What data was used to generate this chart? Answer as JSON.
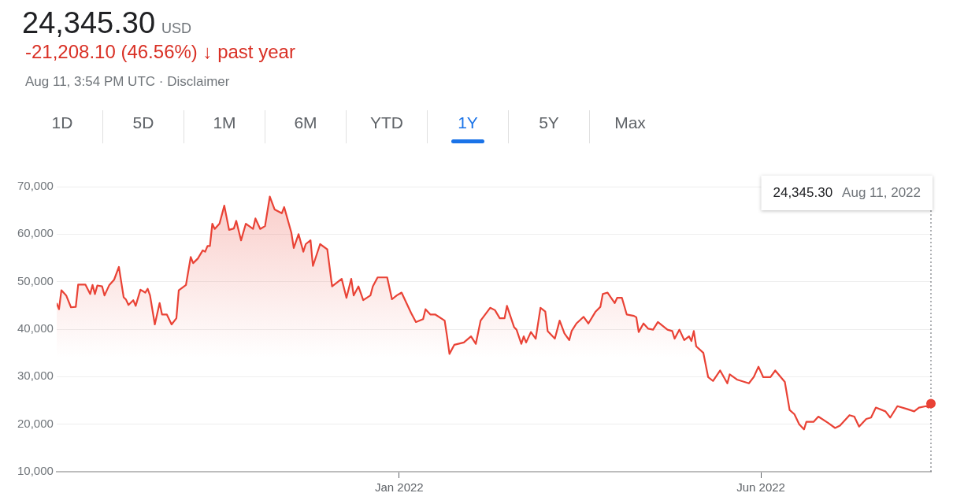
{
  "chart_data": {
    "type": "area",
    "title": "24,345.30 USD",
    "subtitle": "-21,208.10 (46.56%) ↓ past year",
    "annotations": [
      "Aug 11, 3:54 PM UTC · Disclaimer",
      "1D",
      "5D",
      "1M",
      "6M",
      "YTD",
      "1Y",
      "5Y",
      "Max",
      "24,345.30  Aug 11, 2022"
    ],
    "x": [
      "2021-08-11",
      "2021-08-12",
      "2021-08-13",
      "2021-08-15",
      "2021-08-17",
      "2021-08-19",
      "2021-08-20",
      "2021-08-23",
      "2021-08-25",
      "2021-08-26",
      "2021-08-27",
      "2021-08-28",
      "2021-08-30",
      "2021-08-31",
      "2021-09-02",
      "2021-09-04",
      "2021-09-06",
      "2021-09-08",
      "2021-09-09",
      "2021-09-10",
      "2021-09-12",
      "2021-09-13",
      "2021-09-15",
      "2021-09-17",
      "2021-09-18",
      "2021-09-19",
      "2021-09-21",
      "2021-09-23",
      "2021-09-24",
      "2021-09-26",
      "2021-09-28",
      "2021-09-30",
      "2021-10-01",
      "2021-10-04",
      "2021-10-06",
      "2021-10-07",
      "2021-10-09",
      "2021-10-11",
      "2021-10-12",
      "2021-10-13",
      "2021-10-14",
      "2021-10-15",
      "2021-10-16",
      "2021-10-18",
      "2021-10-20",
      "2021-10-22",
      "2021-10-24",
      "2021-10-25",
      "2021-10-27",
      "2021-10-29",
      "2021-11-01",
      "2021-11-02",
      "2021-11-04",
      "2021-11-06",
      "2021-11-08",
      "2021-11-10",
      "2021-11-13",
      "2021-11-14",
      "2021-11-17",
      "2021-11-18",
      "2021-11-20",
      "2021-11-22",
      "2021-11-23",
      "2021-11-25",
      "2021-11-26",
      "2021-11-29",
      "2021-12-02",
      "2021-12-04",
      "2021-12-08",
      "2021-12-10",
      "2021-12-12",
      "2021-12-13",
      "2021-12-15",
      "2021-12-17",
      "2021-12-20",
      "2021-12-21",
      "2021-12-23",
      "2021-12-27",
      "2021-12-29",
      "2021-12-31",
      "2022-01-02",
      "2022-01-06",
      "2022-01-08",
      "2022-01-11",
      "2022-01-12",
      "2022-01-14",
      "2022-01-16",
      "2022-01-20",
      "2022-01-21",
      "2022-01-22",
      "2022-01-24",
      "2022-01-28",
      "2022-01-31",
      "2022-02-02",
      "2022-02-04",
      "2022-02-08",
      "2022-02-10",
      "2022-02-12",
      "2022-02-14",
      "2022-02-15",
      "2022-02-18",
      "2022-02-19",
      "2022-02-21",
      "2022-02-22",
      "2022-02-23",
      "2022-02-25",
      "2022-02-27",
      "2022-03-01",
      "2022-03-03",
      "2022-03-04",
      "2022-03-07",
      "2022-03-09",
      "2022-03-11",
      "2022-03-13",
      "2022-03-14",
      "2022-03-16",
      "2022-03-19",
      "2022-03-21",
      "2022-03-24",
      "2022-03-26",
      "2022-03-27",
      "2022-03-29",
      "2022-04-01",
      "2022-04-02",
      "2022-04-04",
      "2022-04-06",
      "2022-04-09",
      "2022-04-10",
      "2022-04-11",
      "2022-04-13",
      "2022-04-15",
      "2022-04-17",
      "2022-04-19",
      "2022-04-23",
      "2022-04-25",
      "2022-04-26",
      "2022-04-28",
      "2022-04-30",
      "2022-05-02",
      "2022-05-03",
      "2022-05-04",
      "2022-05-05",
      "2022-05-08",
      "2022-05-10",
      "2022-05-12",
      "2022-05-15",
      "2022-05-18",
      "2022-05-19",
      "2022-05-22",
      "2022-05-27",
      "2022-05-29",
      "2022-05-31",
      "2022-06-02",
      "2022-06-05",
      "2022-06-07",
      "2022-06-11",
      "2022-06-13",
      "2022-06-15",
      "2022-06-17",
      "2022-06-19",
      "2022-06-20",
      "2022-06-23",
      "2022-06-25",
      "2022-06-29",
      "2022-07-02",
      "2022-07-04",
      "2022-07-08",
      "2022-07-10",
      "2022-07-12",
      "2022-07-15",
      "2022-07-17",
      "2022-07-19",
      "2022-07-23",
      "2022-07-25",
      "2022-07-28",
      "2022-08-01",
      "2022-08-04",
      "2022-08-06",
      "2022-08-09",
      "2022-08-10",
      "2022-08-11"
    ],
    "values": [
      45500,
      44200,
      48200,
      47100,
      44600,
      44700,
      49400,
      49400,
      47400,
      49300,
      47400,
      49200,
      49000,
      47100,
      49300,
      50400,
      53100,
      46700,
      46200,
      45100,
      46100,
      44900,
      48300,
      47700,
      48500,
      47100,
      41000,
      45500,
      43100,
      43100,
      41000,
      42300,
      48200,
      49300,
      55200,
      53900,
      54900,
      56600,
      56300,
      57500,
      57500,
      62200,
      61100,
      62200,
      66000,
      60900,
      61200,
      62800,
      58700,
      62200,
      61100,
      63300,
      61100,
      61700,
      67900,
      65200,
      64400,
      65700,
      60300,
      57100,
      60000,
      56300,
      57900,
      58700,
      53300,
      57900,
      56800,
      49000,
      50600,
      46600,
      50600,
      47100,
      49000,
      46100,
      47100,
      49000,
      50900,
      50900,
      46300,
      47100,
      47700,
      43400,
      41500,
      42100,
      44200,
      43100,
      43100,
      41800,
      38500,
      34800,
      36700,
      37200,
      38500,
      36900,
      41800,
      44500,
      44000,
      42300,
      42300,
      44900,
      40400,
      39900,
      36900,
      38500,
      37200,
      39400,
      38000,
      44500,
      43700,
      39600,
      38000,
      41800,
      39100,
      37700,
      39600,
      41200,
      42600,
      41200,
      43700,
      44700,
      47400,
      47700,
      45500,
      46600,
      46600,
      43100,
      42800,
      42500,
      39400,
      41200,
      40100,
      39900,
      41500,
      39900,
      39600,
      38000,
      39900,
      37700,
      38500,
      37500,
      39600,
      36400,
      35000,
      29900,
      29100,
      31300,
      28600,
      30500,
      29400,
      28600,
      29900,
      32100,
      29900,
      29900,
      31300,
      28900,
      23000,
      22100,
      20000,
      18900,
      20500,
      20500,
      21600,
      20300,
      19200,
      19700,
      21900,
      21600,
      19500,
      21100,
      21400,
      23500,
      22700,
      21400,
      23800,
      23200,
      22700,
      23500,
      23800,
      23500,
      24345.3
    ],
    "color": "#e94235",
    "xlim": [
      "2021-08-11",
      "2022-08-11"
    ],
    "xticks": [
      {
        "value": "2022-01-01",
        "label": "Jan 2022"
      },
      {
        "value": "2022-06-01",
        "label": "Jun 2022"
      }
    ],
    "ylim": [
      10000,
      70000
    ],
    "yticks": [
      {
        "value": 10000,
        "label": "10,000"
      },
      {
        "value": 20000,
        "label": "20,000"
      },
      {
        "value": 30000,
        "label": "30,000"
      },
      {
        "value": 40000,
        "label": "40,000"
      },
      {
        "value": 50000,
        "label": "50,000"
      },
      {
        "value": 60000,
        "label": "60,000"
      },
      {
        "value": 70000,
        "label": "70,000"
      }
    ],
    "grid": "y",
    "legend": false,
    "marker": "none",
    "line_style": "solid",
    "ref_lines": [
      {
        "axis": "x",
        "value": "2022-08-11",
        "line_style": "dotted",
        "color": "#5f6368"
      }
    ]
  }
}
